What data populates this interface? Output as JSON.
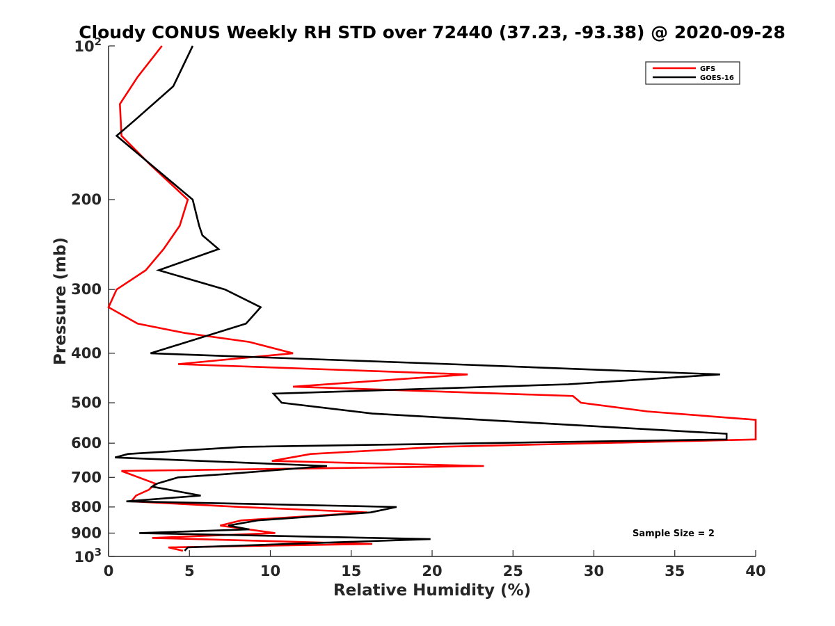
{
  "chart_data": {
    "type": "line",
    "title": "Cloudy CONUS Weekly RH STD over 72440 (37.23, -93.38) @ 2020-09-28",
    "xlabel": "Relative Humidity (%)",
    "ylabel": "Pressure (mb)",
    "xlim": [
      0,
      40
    ],
    "ylim": [
      100,
      1000
    ],
    "y_scale": "log",
    "y_reversed": true,
    "grid": false,
    "legend_position": "top-right",
    "x_ticks": [
      0,
      5,
      10,
      15,
      20,
      25,
      30,
      35,
      40
    ],
    "x_tick_labels": [
      "0",
      "5",
      "10",
      "15",
      "20",
      "25",
      "30",
      "35",
      "40"
    ],
    "y_ticks": [
      200,
      300,
      400,
      500,
      600,
      700,
      800,
      900
    ],
    "y_tick_labels": [
      "200",
      "300",
      "400",
      "500",
      "600",
      "700",
      "800",
      "900"
    ],
    "y_end_labels": [
      {
        "value": 100,
        "base": "10",
        "exp": "2"
      },
      {
        "value": 1000,
        "base": "10",
        "exp": "3"
      }
    ],
    "annotation": "Sample Size = 2",
    "series": [
      {
        "name": "GFS",
        "color": "#ff0000",
        "points": [
          [
            3.3,
            100
          ],
          [
            1.8,
            115
          ],
          [
            0.7,
            130
          ],
          [
            0.8,
            150
          ],
          [
            2.5,
            170
          ],
          [
            4.9,
            200
          ],
          [
            4.4,
            225
          ],
          [
            3.4,
            250
          ],
          [
            2.3,
            275
          ],
          [
            0.5,
            300
          ],
          [
            0,
            325
          ],
          [
            1.8,
            350
          ],
          [
            4.7,
            365
          ],
          [
            8.7,
            380
          ],
          [
            11.4,
            400
          ],
          [
            4.3,
            420
          ],
          [
            22.2,
            440
          ],
          [
            11.4,
            465
          ],
          [
            28.7,
            485
          ],
          [
            29.2,
            500
          ],
          [
            33.3,
            520
          ],
          [
            40,
            540
          ],
          [
            40,
            590
          ],
          [
            20.5,
            610
          ],
          [
            12.5,
            630
          ],
          [
            10.1,
            650
          ],
          [
            23.2,
            665
          ],
          [
            0.8,
            680
          ],
          [
            2.9,
            720
          ],
          [
            2.5,
            740
          ],
          [
            1.7,
            760
          ],
          [
            1.4,
            780
          ],
          [
            8.2,
            800
          ],
          [
            16,
            820
          ],
          [
            8.2,
            850
          ],
          [
            6.9,
            870
          ],
          [
            10.3,
            900
          ],
          [
            2.7,
            920
          ],
          [
            16.3,
            945
          ],
          [
            3.7,
            960
          ],
          [
            4.6,
            975
          ]
        ]
      },
      {
        "name": "GOES-16",
        "color": "#000000",
        "points": [
          [
            5.2,
            100
          ],
          [
            4,
            120
          ],
          [
            1.6,
            140
          ],
          [
            0.5,
            150
          ],
          [
            5.2,
            200
          ],
          [
            5.6,
            225
          ],
          [
            5.8,
            235
          ],
          [
            6.8,
            250
          ],
          [
            3.1,
            275
          ],
          [
            7.2,
            300
          ],
          [
            9.4,
            325
          ],
          [
            8.5,
            350
          ],
          [
            2.6,
            400
          ],
          [
            21.1,
            420
          ],
          [
            37.8,
            440
          ],
          [
            28.4,
            460
          ],
          [
            10.2,
            480
          ],
          [
            10.7,
            500
          ],
          [
            16.3,
            525
          ],
          [
            38.2,
            575
          ],
          [
            38.2,
            590
          ],
          [
            8.3,
            610
          ],
          [
            1.2,
            630
          ],
          [
            0.4,
            640
          ],
          [
            13.5,
            665
          ],
          [
            7.2,
            690
          ],
          [
            4.3,
            700
          ],
          [
            3,
            720
          ],
          [
            2.7,
            730
          ],
          [
            5.7,
            760
          ],
          [
            1.1,
            780
          ],
          [
            17.8,
            800
          ],
          [
            16.2,
            820
          ],
          [
            9.2,
            850
          ],
          [
            7.4,
            870
          ],
          [
            8.7,
            885
          ],
          [
            1.9,
            900
          ],
          [
            19.9,
            925
          ],
          [
            4.9,
            960
          ],
          [
            4.7,
            975
          ]
        ]
      }
    ]
  }
}
